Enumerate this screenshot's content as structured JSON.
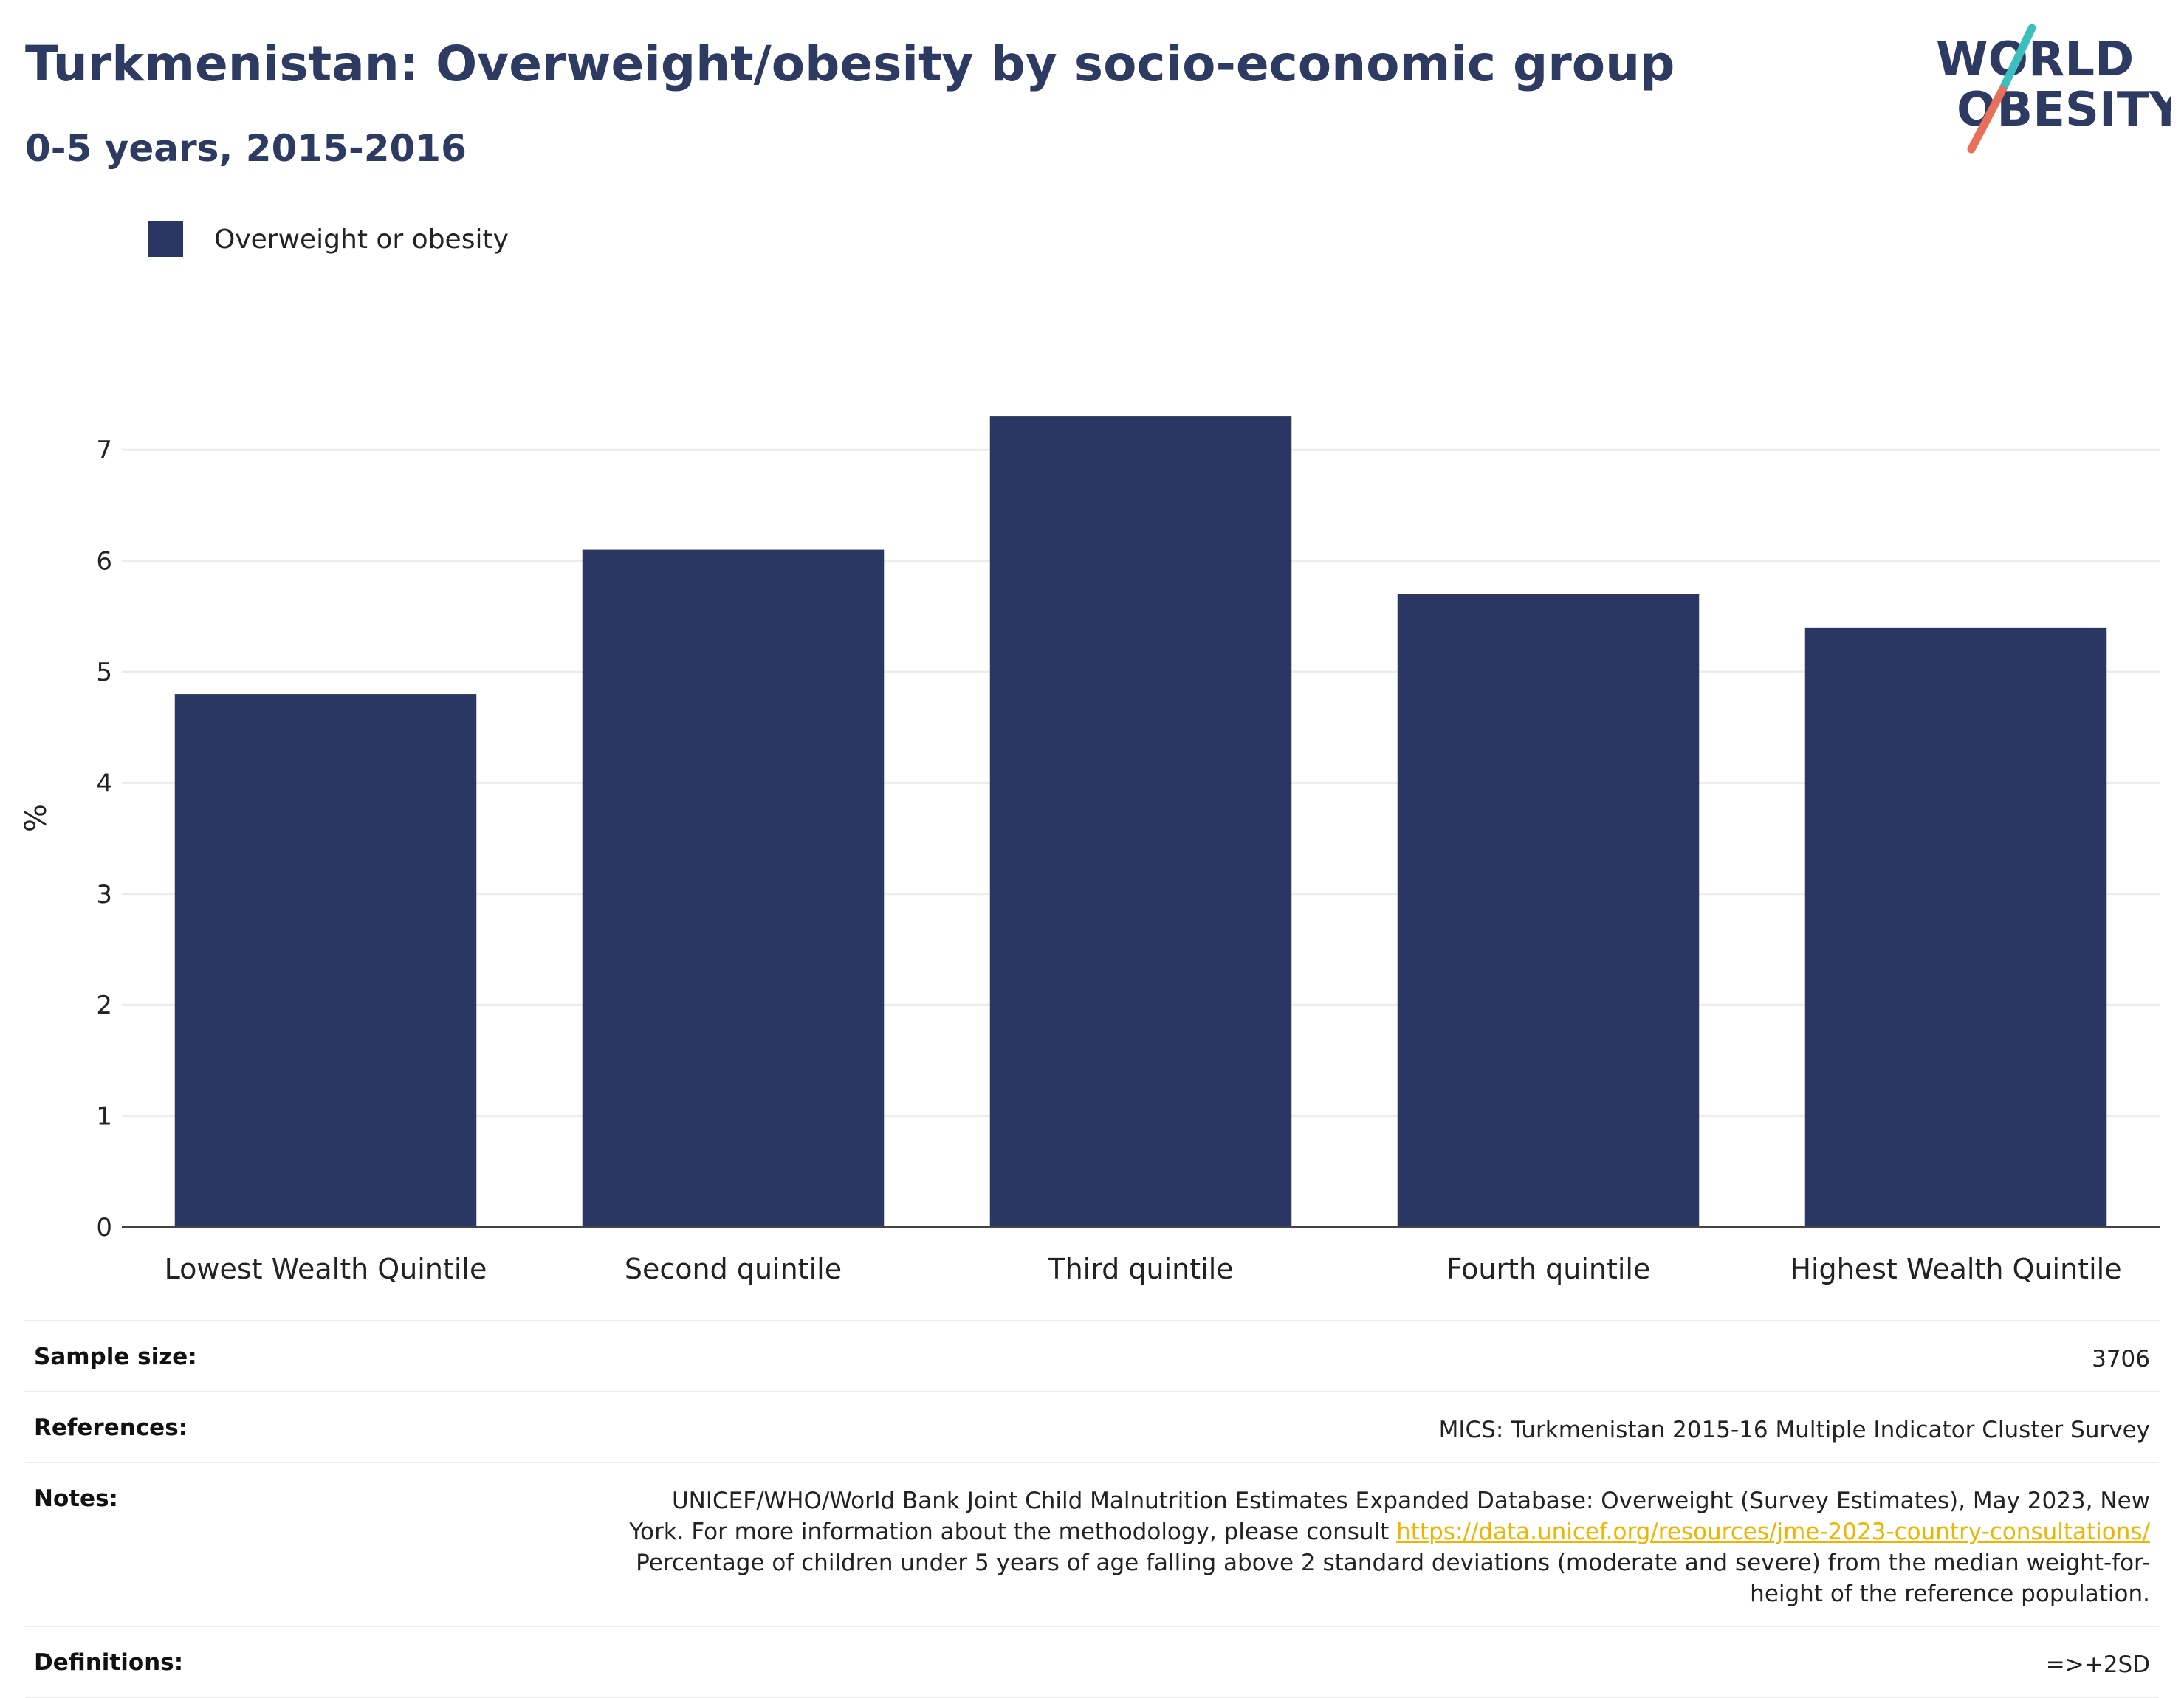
{
  "header": {
    "title": "Turkmenistan: Overweight/obesity by socio-economic group",
    "subtitle": "0-5 years, 2015-2016"
  },
  "logo": {
    "line1": "WORLD",
    "line2": "OBESITY",
    "slash_color_top": "#3bbfbf",
    "slash_color_bottom": "#e8705a"
  },
  "colors": {
    "bar": "#2b3763",
    "title": "#2d3a62",
    "link": "#f0b400"
  },
  "chart_data": {
    "type": "bar",
    "categories": [
      "Lowest Wealth Quintile",
      "Second quintile",
      "Third quintile",
      "Fourth quintile",
      "Highest Wealth Quintile"
    ],
    "series": [
      {
        "name": "Overweight or obesity",
        "values": [
          4.8,
          6.1,
          7.3,
          5.7,
          5.4
        ]
      }
    ],
    "ylabel": "%",
    "xlabel": "",
    "ylim": [
      0,
      7.5
    ],
    "yticks": [
      0,
      1,
      2,
      3,
      4,
      5,
      6,
      7
    ],
    "grid": true,
    "legend_position": "top-left"
  },
  "meta": {
    "sample_size_label": "Sample size:",
    "sample_size_value": "3706",
    "references_label": "References:",
    "references_value": "MICS: Turkmenistan 2015-16 Multiple Indicator Cluster Survey",
    "notes_label": "Notes:",
    "notes_text_1": "UNICEF/WHO/World Bank Joint Child Malnutrition Estimates Expanded Database: Overweight (Survey Estimates), May 2023, New York. For more information about the methodology, please consult ",
    "notes_link": "https://data.unicef.org/resources/jme-2023-country-consultations/",
    "notes_text_2": "Percentage of children under 5 years of age falling above 2 standard deviations (moderate and severe) from the median weight-for-height of the reference population.",
    "definitions_label": "Definitions:",
    "definitions_value": "=>+2SD"
  }
}
